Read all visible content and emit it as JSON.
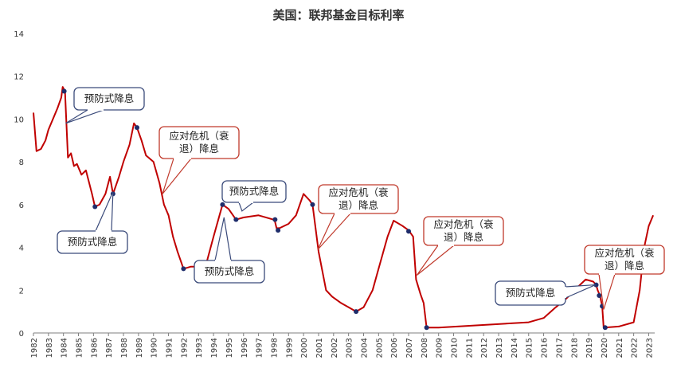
{
  "chart_data": {
    "type": "line",
    "title": "美国：联邦基金目标利率",
    "xlabel": "",
    "ylabel": "",
    "xlim": [
      1982,
      2023.4
    ],
    "ylim": [
      0,
      14
    ],
    "grid": false,
    "legend": "none",
    "y_ticks": [
      "0",
      "2",
      "4",
      "6",
      "8",
      "10",
      "12",
      "14"
    ],
    "x_ticks": [
      "1982",
      "1983",
      "1984",
      "1985",
      "1986",
      "1987",
      "1988",
      "1989",
      "1990",
      "1991",
      "1992",
      "1993",
      "1994",
      "1995",
      "1996",
      "1997",
      "1998",
      "1999",
      "2000",
      "2001",
      "2002",
      "2003",
      "2004",
      "2005",
      "2006",
      "2007",
      "2008",
      "2009",
      "2010",
      "2011",
      "2012",
      "2013",
      "2014",
      "2015",
      "2016",
      "2017",
      "2018",
      "2019",
      "2020",
      "2021",
      "2022",
      "2023"
    ],
    "series": [
      {
        "name": "",
        "color": "#c00000",
        "points": [
          [
            1982.0,
            10.3
          ],
          [
            1982.2,
            8.5
          ],
          [
            1982.5,
            8.6
          ],
          [
            1982.8,
            9.0
          ],
          [
            1983.0,
            9.5
          ],
          [
            1983.3,
            10.0
          ],
          [
            1983.6,
            10.5
          ],
          [
            1983.85,
            11.0
          ],
          [
            1983.95,
            11.5
          ],
          [
            1984.1,
            11.3
          ],
          [
            1984.3,
            8.2
          ],
          [
            1984.5,
            8.4
          ],
          [
            1984.7,
            7.8
          ],
          [
            1984.9,
            7.9
          ],
          [
            1985.2,
            7.4
          ],
          [
            1985.5,
            7.6
          ],
          [
            1985.9,
            6.5
          ],
          [
            1986.1,
            5.9
          ],
          [
            1986.4,
            6.0
          ],
          [
            1986.8,
            6.5
          ],
          [
            1987.1,
            7.3
          ],
          [
            1987.3,
            6.5
          ],
          [
            1987.7,
            7.3
          ],
          [
            1988.0,
            8.0
          ],
          [
            1988.4,
            8.8
          ],
          [
            1988.7,
            9.8
          ],
          [
            1988.9,
            9.6
          ],
          [
            1989.2,
            9.0
          ],
          [
            1989.5,
            8.3
          ],
          [
            1990.0,
            8.0
          ],
          [
            1990.4,
            7.0
          ],
          [
            1990.7,
            6.0
          ],
          [
            1991.0,
            5.5
          ],
          [
            1991.3,
            4.5
          ],
          [
            1991.6,
            3.8
          ],
          [
            1992.0,
            3.0
          ],
          [
            1992.5,
            3.1
          ],
          [
            1993.0,
            3.1
          ],
          [
            1993.5,
            3.2
          ],
          [
            1994.0,
            4.5
          ],
          [
            1994.4,
            5.5
          ],
          [
            1994.6,
            6.0
          ],
          [
            1995.0,
            5.8
          ],
          [
            1995.3,
            5.5
          ],
          [
            1995.5,
            5.3
          ],
          [
            1996.0,
            5.4
          ],
          [
            1997.0,
            5.5
          ],
          [
            1998.0,
            5.3
          ],
          [
            1998.1,
            5.2
          ],
          [
            1998.2,
            4.9
          ],
          [
            1998.4,
            4.9
          ],
          [
            1999.0,
            5.1
          ],
          [
            1999.5,
            5.5
          ],
          [
            2000.0,
            6.5
          ],
          [
            2000.4,
            6.2
          ],
          [
            2000.6,
            6.0
          ],
          [
            2001.0,
            3.8
          ],
          [
            2001.5,
            2.0
          ],
          [
            2001.9,
            1.7
          ],
          [
            2002.5,
            1.4
          ],
          [
            2003.0,
            1.2
          ],
          [
            2003.5,
            1.0
          ],
          [
            2004.0,
            1.2
          ],
          [
            2004.6,
            2.0
          ],
          [
            2005.0,
            3.0
          ],
          [
            2005.6,
            4.5
          ],
          [
            2006.0,
            5.25
          ],
          [
            2006.6,
            5.0
          ],
          [
            2007.0,
            4.8
          ],
          [
            2007.3,
            4.5
          ],
          [
            2007.5,
            2.5
          ],
          [
            2007.8,
            1.8
          ],
          [
            2008.0,
            1.4
          ],
          [
            2008.2,
            0.25
          ],
          [
            2009.0,
            0.25
          ],
          [
            2015.0,
            0.5
          ],
          [
            2016.0,
            0.7
          ],
          [
            2016.8,
            1.2
          ],
          [
            2017.5,
            1.6
          ],
          [
            2018.2,
            2.1
          ],
          [
            2018.8,
            2.5
          ],
          [
            2019.3,
            2.4
          ],
          [
            2019.5,
            2.25
          ],
          [
            2019.6,
            2.0
          ],
          [
            2019.75,
            1.75
          ],
          [
            2019.9,
            1.25
          ],
          [
            2020.0,
            0.25
          ],
          [
            2021.0,
            0.3
          ],
          [
            2022.0,
            0.5
          ],
          [
            2022.4,
            2.0
          ],
          [
            2022.7,
            4.0
          ],
          [
            2023.0,
            5.0
          ],
          [
            2023.3,
            5.5
          ]
        ]
      }
    ],
    "markers": [
      [
        1984.05,
        11.3
      ],
      [
        1986.1,
        5.9
      ],
      [
        1987.3,
        6.5
      ],
      [
        1988.9,
        9.6
      ],
      [
        1992.0,
        3.0
      ],
      [
        1994.6,
        6.0
      ],
      [
        1995.5,
        5.3
      ],
      [
        1998.1,
        5.3
      ],
      [
        1998.3,
        4.8
      ],
      [
        2000.6,
        6.0
      ],
      [
        2003.5,
        1.0
      ],
      [
        2007.0,
        4.75
      ],
      [
        2008.2,
        0.25
      ],
      [
        2019.5,
        2.25
      ],
      [
        2019.7,
        1.75
      ],
      [
        2019.9,
        1.25
      ],
      [
        2020.1,
        0.25
      ]
    ],
    "annotations": [
      {
        "text": "预防式降息",
        "style": "preventive",
        "lines": [
          "预防式降息"
        ]
      },
      {
        "text": "预防式降息",
        "style": "preventive",
        "lines": [
          "预防式降息"
        ]
      },
      {
        "text": "应对危机（衰退）降息",
        "style": "crisis",
        "lines": [
          "应对危机（衰",
          "退）降息"
        ]
      },
      {
        "text": "预防式降息",
        "style": "preventive",
        "lines": [
          "预防式降息"
        ]
      },
      {
        "text": "预防式降息",
        "style": "preventive",
        "lines": [
          "预防式降息"
        ]
      },
      {
        "text": "应对危机（衰退）降息",
        "style": "crisis",
        "lines": [
          "应对危机（衰",
          "退）降息"
        ]
      },
      {
        "text": "应对危机（衰退）降息",
        "style": "crisis",
        "lines": [
          "应对危机（衰",
          "退）降息"
        ]
      },
      {
        "text": "预防式降息",
        "style": "preventive",
        "lines": [
          "预防式降息"
        ]
      },
      {
        "text": "应对危机（衰退）降息",
        "style": "crisis",
        "lines": [
          "应对危机（衰",
          "退）降息"
        ]
      }
    ],
    "colors": {
      "line": "#c00000",
      "marker": "#1f2d6b",
      "preventive_border": "#3a4a7a",
      "crisis_border": "#c0392b",
      "axis": "#7f7f7f"
    }
  }
}
